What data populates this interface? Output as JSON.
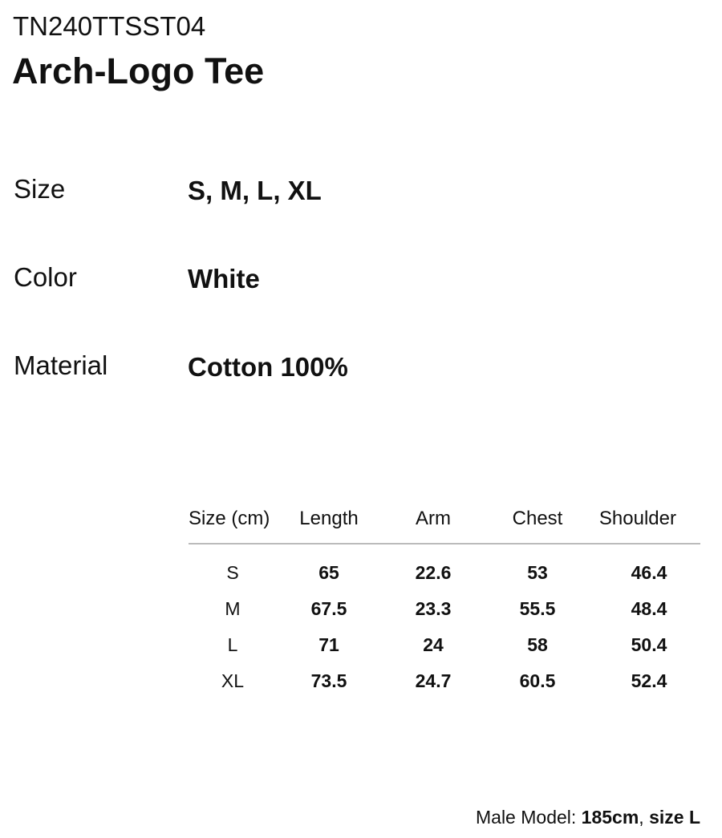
{
  "product": {
    "code": "TN240TTSST04",
    "title": "Arch-Logo Tee"
  },
  "specs": [
    {
      "label": "Size",
      "value": "S, M, L, XL"
    },
    {
      "label": "Color",
      "value": "White"
    },
    {
      "label": "Material",
      "value": "Cotton 100%"
    }
  ],
  "size_table": {
    "headers": [
      "Size (cm)",
      "Length",
      "Arm",
      "Chest",
      "Shoulder"
    ],
    "rows": [
      [
        "S",
        "65",
        "22.6",
        "53",
        "46.4"
      ],
      [
        "M",
        "67.5",
        "23.3",
        "55.5",
        "48.4"
      ],
      [
        "L",
        "71",
        "24",
        "58",
        "50.4"
      ],
      [
        "XL",
        "73.5",
        "24.7",
        "60.5",
        "52.4"
      ]
    ]
  },
  "footer": {
    "label": "Male Model:",
    "height": "185cm",
    "sep": ",",
    "size": "size L"
  }
}
